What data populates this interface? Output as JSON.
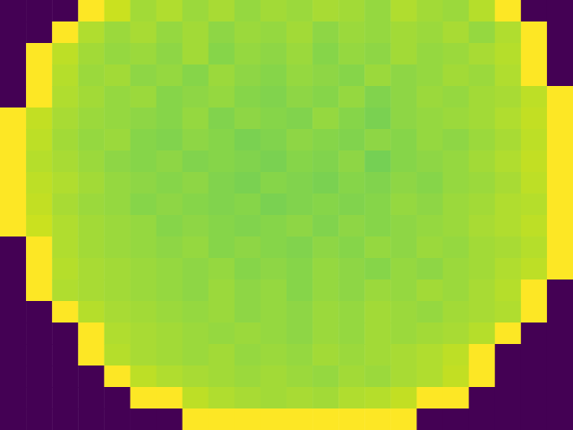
{
  "chart_data": {
    "type": "heatmap",
    "tick_labels": false,
    "zlim": [
      0,
      100
    ],
    "z": [
      [
        0,
        0,
        0,
        100,
        92,
        86,
        88,
        85,
        87,
        84,
        86,
        85,
        87,
        86,
        84,
        88,
        86,
        85,
        89,
        100,
        0,
        0
      ],
      [
        0,
        0,
        100,
        88,
        85,
        87,
        84,
        86,
        83,
        85,
        84,
        86,
        83,
        85,
        84,
        86,
        85,
        87,
        84,
        88,
        100,
        0
      ],
      [
        0,
        100,
        90,
        86,
        84,
        85,
        83,
        86,
        82,
        84,
        83,
        85,
        82,
        84,
        83,
        86,
        84,
        85,
        87,
        89,
        100,
        0
      ],
      [
        0,
        100,
        89,
        85,
        86,
        83,
        84,
        82,
        85,
        83,
        82,
        84,
        83,
        82,
        85,
        83,
        84,
        86,
        85,
        88,
        100,
        0
      ],
      [
        0,
        100,
        88,
        86,
        84,
        85,
        82,
        83,
        84,
        82,
        81,
        83,
        82,
        84,
        81,
        83,
        85,
        84,
        86,
        87,
        90,
        100
      ],
      [
        100,
        91,
        87,
        85,
        84,
        83,
        82,
        84,
        81,
        83,
        82,
        81,
        84,
        82,
        80,
        83,
        84,
        85,
        86,
        88,
        91,
        100
      ],
      [
        100,
        90,
        86,
        84,
        85,
        82,
        81,
        83,
        82,
        80,
        81,
        83,
        82,
        81,
        83,
        82,
        84,
        83,
        85,
        87,
        90,
        100
      ],
      [
        100,
        89,
        87,
        85,
        83,
        82,
        83,
        81,
        82,
        81,
        80,
        82,
        81,
        83,
        79,
        82,
        83,
        84,
        86,
        88,
        91,
        100
      ],
      [
        100,
        90,
        88,
        86,
        84,
        83,
        82,
        83,
        81,
        80,
        82,
        81,
        80,
        82,
        81,
        83,
        82,
        84,
        85,
        87,
        90,
        100
      ],
      [
        100,
        91,
        87,
        85,
        84,
        82,
        83,
        82,
        81,
        82,
        80,
        81,
        82,
        81,
        82,
        84,
        83,
        85,
        86,
        88,
        89,
        100
      ],
      [
        100,
        92,
        88,
        86,
        85,
        84,
        82,
        83,
        82,
        81,
        82,
        83,
        81,
        83,
        82,
        83,
        84,
        85,
        87,
        88,
        90,
        100
      ],
      [
        0,
        100,
        88,
        86,
        85,
        84,
        83,
        84,
        82,
        83,
        82,
        81,
        83,
        82,
        84,
        83,
        85,
        84,
        86,
        87,
        89,
        100
      ],
      [
        0,
        100,
        89,
        87,
        86,
        85,
        84,
        83,
        84,
        82,
        83,
        82,
        84,
        83,
        82,
        84,
        83,
        85,
        86,
        88,
        90,
        100
      ],
      [
        0,
        100,
        88,
        87,
        86,
        85,
        84,
        83,
        85,
        83,
        84,
        82,
        84,
        83,
        85,
        84,
        86,
        85,
        87,
        89,
        100,
        0
      ],
      [
        0,
        0,
        100,
        89,
        87,
        86,
        85,
        84,
        85,
        83,
        84,
        83,
        85,
        84,
        86,
        85,
        84,
        86,
        87,
        88,
        100,
        0
      ],
      [
        0,
        0,
        0,
        100,
        88,
        87,
        86,
        85,
        84,
        85,
        84,
        83,
        85,
        84,
        86,
        85,
        86,
        87,
        89,
        100,
        0,
        0
      ],
      [
        0,
        0,
        0,
        100,
        89,
        87,
        86,
        85,
        86,
        84,
        85,
        84,
        86,
        85,
        86,
        87,
        88,
        90,
        100,
        0,
        0,
        0
      ],
      [
        0,
        0,
        0,
        0,
        100,
        90,
        88,
        87,
        86,
        85,
        86,
        85,
        84,
        86,
        85,
        87,
        88,
        91,
        100,
        0,
        0,
        0
      ],
      [
        0,
        0,
        0,
        0,
        0,
        100,
        100,
        90,
        88,
        87,
        86,
        87,
        86,
        88,
        89,
        91,
        100,
        100,
        0,
        0,
        0,
        0
      ],
      [
        0,
        0,
        0,
        0,
        0,
        0,
        0,
        100,
        100,
        100,
        100,
        100,
        100,
        100,
        100,
        100,
        0,
        0,
        0,
        0,
        0,
        0
      ]
    ]
  }
}
